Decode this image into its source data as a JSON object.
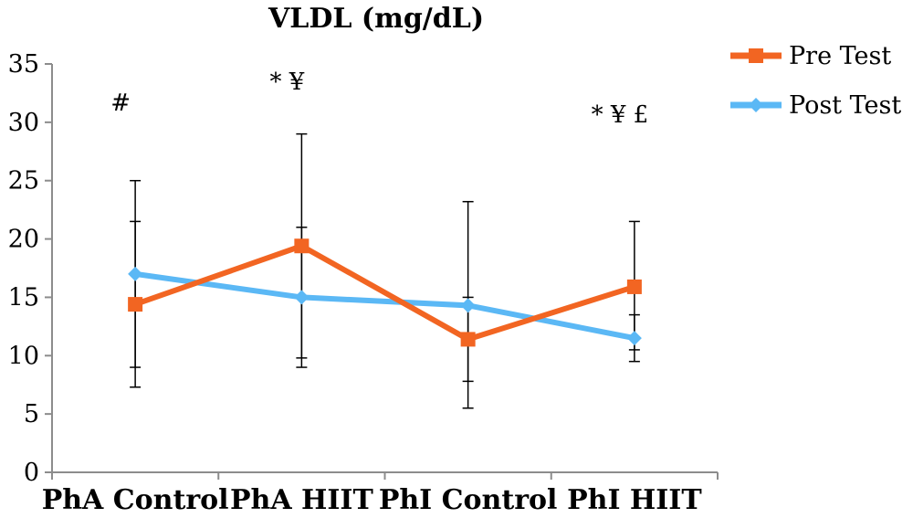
{
  "chart_data": {
    "type": "line",
    "title": "VLDL (mg/dL)",
    "categories": [
      "PhA Control",
      "PhA HIIT",
      "PhI Control",
      "PhI HIIT"
    ],
    "ylim": [
      0,
      35
    ],
    "yticks": [
      0,
      5,
      10,
      15,
      20,
      25,
      30,
      35
    ],
    "grid": false,
    "legend_position": "top-right",
    "series": [
      {
        "name": "Pre Test",
        "color": "#F26522",
        "marker": "square",
        "values": [
          14.4,
          19.4,
          11.4,
          15.9
        ],
        "error_low": [
          7.3,
          9.8,
          7.8,
          10.5
        ],
        "error_high": [
          21.5,
          29.0,
          15.0,
          21.5
        ]
      },
      {
        "name": "Post Test",
        "color": "#5BB8F5",
        "marker": "diamond",
        "values": [
          17.0,
          15.0,
          14.3,
          11.5
        ],
        "error_low": [
          9.0,
          9.0,
          5.5,
          9.5
        ],
        "error_high": [
          25.0,
          21.0,
          23.2,
          13.5
        ]
      }
    ],
    "annotations": [
      {
        "category": "PhA Control",
        "text": "#",
        "y": 31.0
      },
      {
        "category": "PhA HIIT",
        "text": "* ¥",
        "y": 32.8
      },
      {
        "category": "PhI HIIT",
        "text": "* ¥ £",
        "y": 30.0
      }
    ]
  }
}
